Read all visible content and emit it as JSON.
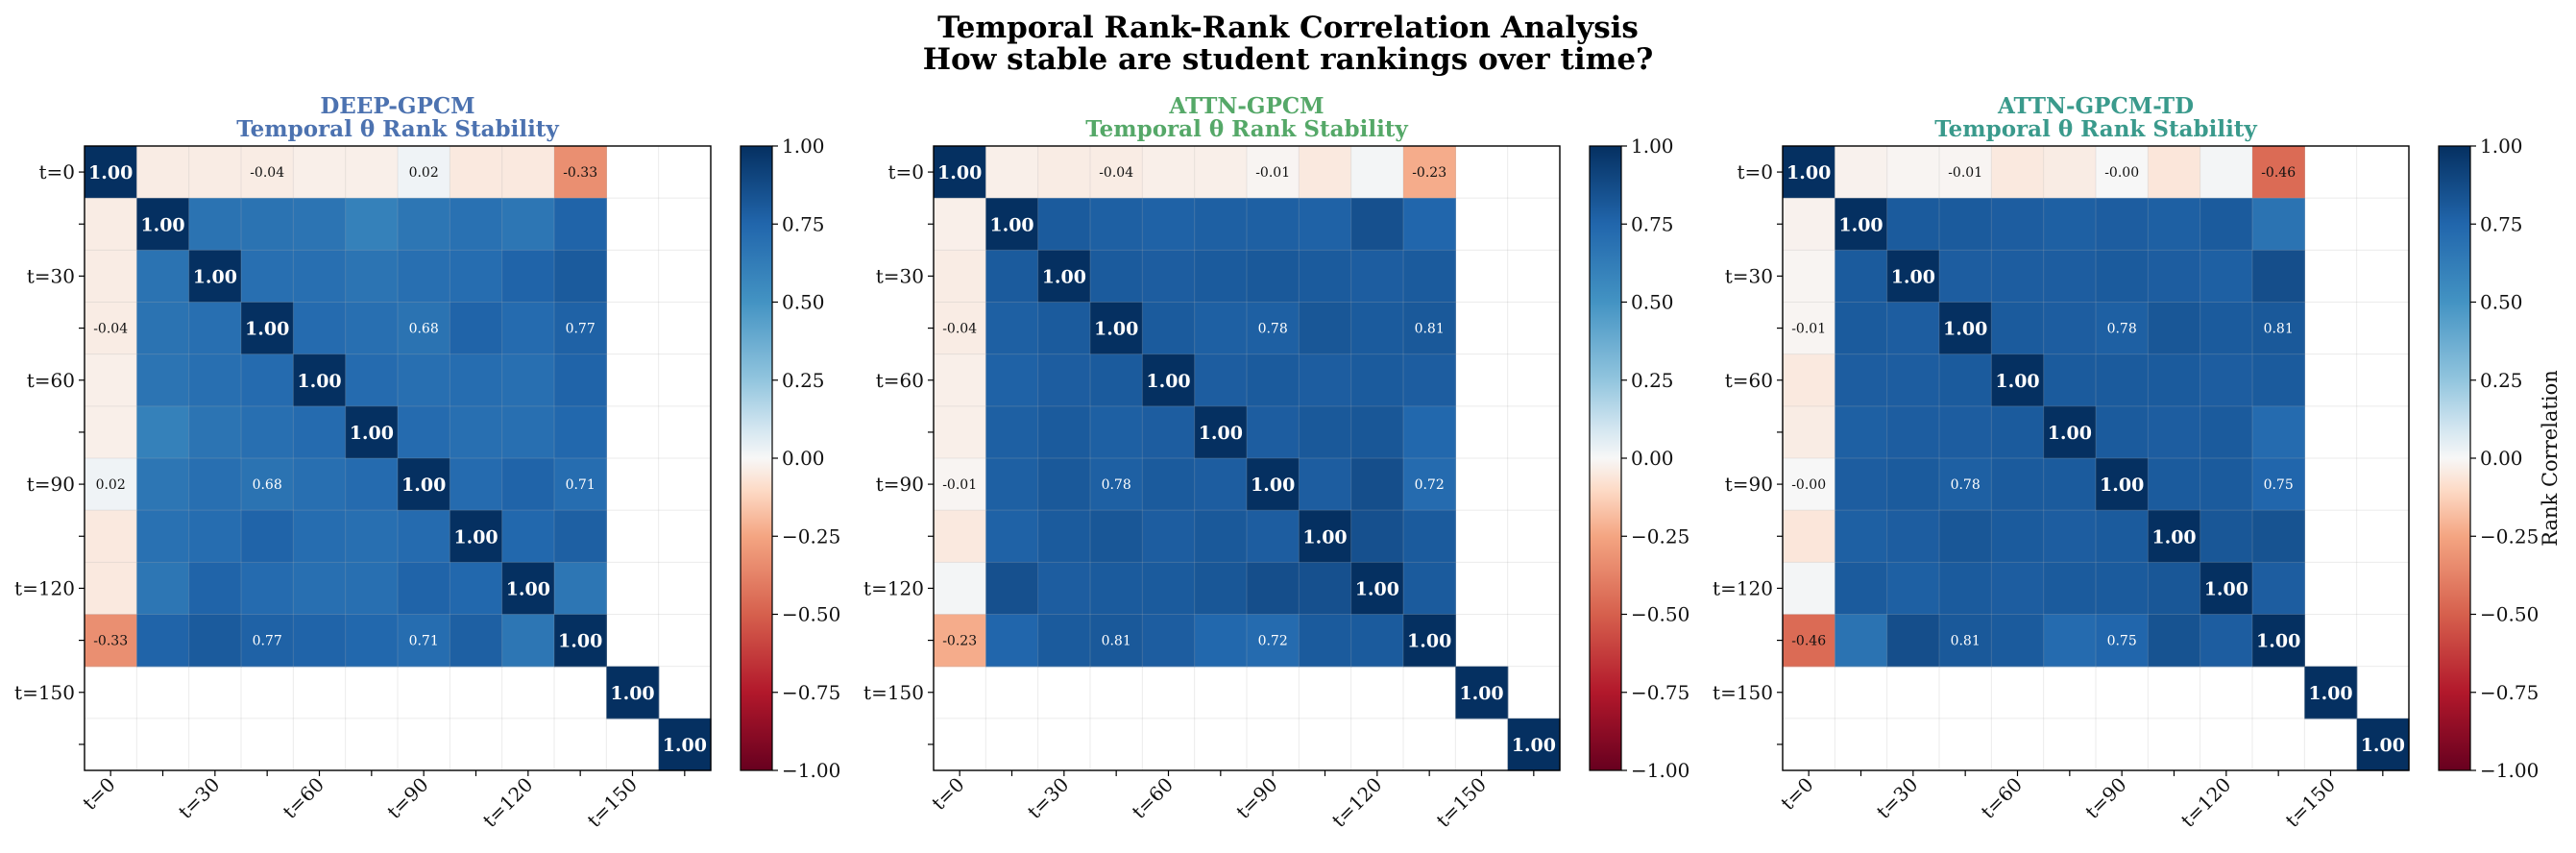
{
  "figure": {
    "title_line1": "Temporal Rank-Rank Correlation Analysis",
    "title_line2": "How stable are student rankings over time?"
  },
  "chart_data": [
    {
      "type": "heatmap",
      "title": "DEEP-GPCM",
      "subtitle": "Temporal θ Rank Stability",
      "title_color": "#4c72b0",
      "y_tick_labels": [
        "t=0",
        "t=30",
        "t=60",
        "t=90",
        "t=120",
        "t=150"
      ],
      "x_tick_labels": [
        "t=0",
        "t=30",
        "t=60",
        "t=90",
        "t=120",
        "t=150"
      ],
      "size": 12,
      "labeled_indices": [
        0,
        3,
        6,
        9
      ],
      "values": [
        [
          1.0,
          -0.04,
          -0.04,
          -0.04,
          -0.03,
          -0.03,
          0.02,
          -0.05,
          -0.05,
          -0.33,
          null,
          null
        ],
        [
          -0.04,
          1.0,
          0.68,
          0.68,
          0.67,
          0.6,
          0.66,
          0.69,
          0.66,
          0.76,
          null,
          null
        ],
        [
          -0.04,
          0.68,
          1.0,
          0.7,
          0.7,
          0.67,
          0.7,
          0.71,
          0.76,
          0.8,
          null,
          null
        ],
        [
          -0.04,
          0.68,
          0.7,
          1.0,
          0.72,
          0.7,
          0.68,
          0.76,
          0.72,
          0.77,
          null,
          null
        ],
        [
          -0.03,
          0.67,
          0.7,
          0.72,
          1.0,
          0.72,
          0.7,
          0.71,
          0.7,
          0.76,
          null,
          null
        ],
        [
          -0.03,
          0.6,
          0.67,
          0.7,
          0.72,
          1.0,
          0.72,
          0.7,
          0.7,
          0.74,
          null,
          null
        ],
        [
          0.02,
          0.66,
          0.7,
          0.68,
          0.7,
          0.72,
          1.0,
          0.72,
          0.76,
          0.71,
          null,
          null
        ],
        [
          -0.05,
          0.69,
          0.71,
          0.76,
          0.71,
          0.7,
          0.72,
          1.0,
          0.74,
          0.78,
          null,
          null
        ],
        [
          -0.05,
          0.66,
          0.76,
          0.72,
          0.7,
          0.7,
          0.76,
          0.74,
          1.0,
          0.66,
          null,
          null
        ],
        [
          -0.33,
          0.76,
          0.8,
          0.77,
          0.76,
          0.74,
          0.71,
          0.78,
          0.66,
          1.0,
          null,
          null
        ],
        [
          null,
          null,
          null,
          null,
          null,
          null,
          null,
          null,
          null,
          null,
          1.0,
          null
        ],
        [
          null,
          null,
          null,
          null,
          null,
          null,
          null,
          null,
          null,
          null,
          null,
          1.0
        ]
      ],
      "colorbar": {
        "min": -1.0,
        "max": 1.0,
        "ticks": [
          "1.00",
          "0.75",
          "0.50",
          "0.25",
          "0.00",
          "−0.25",
          "−0.50",
          "−0.75",
          "−1.00"
        ],
        "colormap": "RdBu"
      }
    },
    {
      "type": "heatmap",
      "title": "ATTN-GPCM",
      "subtitle": "Temporal θ Rank Stability",
      "title_color": "#55a868",
      "y_tick_labels": [
        "t=0",
        "t=30",
        "t=60",
        "t=90",
        "t=120",
        "t=150"
      ],
      "x_tick_labels": [
        "t=0",
        "t=30",
        "t=60",
        "t=90",
        "t=120",
        "t=150"
      ],
      "size": 12,
      "labeled_indices": [
        0,
        3,
        6,
        9
      ],
      "values": [
        [
          1.0,
          -0.03,
          -0.04,
          -0.04,
          -0.03,
          -0.03,
          -0.01,
          -0.05,
          0.01,
          -0.23,
          null,
          null
        ],
        [
          -0.03,
          1.0,
          0.8,
          0.78,
          0.77,
          0.78,
          0.78,
          0.77,
          0.85,
          0.75,
          null,
          null
        ],
        [
          -0.04,
          0.8,
          1.0,
          0.8,
          0.79,
          0.8,
          0.81,
          0.8,
          0.79,
          0.8,
          null,
          null
        ],
        [
          -0.04,
          0.78,
          0.8,
          1.0,
          0.8,
          0.78,
          0.78,
          0.82,
          0.8,
          0.81,
          null,
          null
        ],
        [
          -0.03,
          0.77,
          0.79,
          0.8,
          1.0,
          0.79,
          0.8,
          0.79,
          0.8,
          0.79,
          null,
          null
        ],
        [
          -0.03,
          0.78,
          0.8,
          0.78,
          0.79,
          1.0,
          0.79,
          0.81,
          0.82,
          0.74,
          null,
          null
        ],
        [
          -0.01,
          0.78,
          0.81,
          0.78,
          0.8,
          0.79,
          1.0,
          0.79,
          0.86,
          0.72,
          null,
          null
        ],
        [
          -0.05,
          0.77,
          0.8,
          0.82,
          0.79,
          0.81,
          0.79,
          1.0,
          0.85,
          0.8,
          null,
          null
        ],
        [
          0.01,
          0.85,
          0.79,
          0.8,
          0.8,
          0.82,
          0.86,
          0.85,
          1.0,
          0.8,
          null,
          null
        ],
        [
          -0.23,
          0.75,
          0.8,
          0.81,
          0.79,
          0.74,
          0.72,
          0.8,
          0.8,
          1.0,
          null,
          null
        ],
        [
          null,
          null,
          null,
          null,
          null,
          null,
          null,
          null,
          null,
          null,
          1.0,
          null
        ],
        [
          null,
          null,
          null,
          null,
          null,
          null,
          null,
          null,
          null,
          null,
          null,
          1.0
        ]
      ],
      "colorbar": {
        "min": -1.0,
        "max": 1.0,
        "ticks": [
          "1.00",
          "0.75",
          "0.50",
          "0.25",
          "0.00",
          "−0.25",
          "−0.50",
          "−0.75",
          "−1.00"
        ],
        "colormap": "RdBu"
      }
    },
    {
      "type": "heatmap",
      "title": "ATTN-GPCM-TD",
      "subtitle": "Temporal θ Rank Stability",
      "title_color": "#3a9a8c",
      "y_tick_labels": [
        "t=0",
        "t=30",
        "t=60",
        "t=90",
        "t=120",
        "t=150"
      ],
      "x_tick_labels": [
        "t=0",
        "t=30",
        "t=60",
        "t=90",
        "t=120",
        "t=150"
      ],
      "size": 12,
      "labeled_indices": [
        0,
        3,
        6,
        9
      ],
      "values": [
        [
          1.0,
          -0.02,
          -0.01,
          -0.01,
          -0.05,
          -0.04,
          -0.0,
          -0.06,
          0.01,
          -0.46,
          null,
          null
        ],
        [
          -0.02,
          1.0,
          0.8,
          0.8,
          0.79,
          0.78,
          0.79,
          0.78,
          0.8,
          0.68,
          null,
          null
        ],
        [
          -0.01,
          0.8,
          1.0,
          0.79,
          0.79,
          0.79,
          0.8,
          0.79,
          0.78,
          0.86,
          null,
          null
        ],
        [
          -0.01,
          0.8,
          0.79,
          1.0,
          0.8,
          0.79,
          0.78,
          0.82,
          0.8,
          0.81,
          null,
          null
        ],
        [
          -0.05,
          0.79,
          0.79,
          0.8,
          1.0,
          0.8,
          0.8,
          0.8,
          0.79,
          0.8,
          null,
          null
        ],
        [
          -0.04,
          0.78,
          0.79,
          0.79,
          0.8,
          1.0,
          0.8,
          0.79,
          0.8,
          0.72,
          null,
          null
        ],
        [
          -0.0,
          0.79,
          0.8,
          0.78,
          0.8,
          0.8,
          1.0,
          0.8,
          0.8,
          0.75,
          null,
          null
        ],
        [
          -0.06,
          0.78,
          0.79,
          0.82,
          0.8,
          0.79,
          0.8,
          1.0,
          0.82,
          0.84,
          null,
          null
        ],
        [
          0.01,
          0.8,
          0.78,
          0.8,
          0.79,
          0.8,
          0.8,
          0.82,
          1.0,
          0.79,
          null,
          null
        ],
        [
          -0.46,
          0.68,
          0.86,
          0.81,
          0.8,
          0.72,
          0.75,
          0.84,
          0.79,
          1.0,
          null,
          null
        ],
        [
          null,
          null,
          null,
          null,
          null,
          null,
          null,
          null,
          null,
          null,
          1.0,
          null
        ],
        [
          null,
          null,
          null,
          null,
          null,
          null,
          null,
          null,
          null,
          null,
          null,
          1.0
        ]
      ],
      "colorbar": {
        "min": -1.0,
        "max": 1.0,
        "ticks": [
          "1.00",
          "0.75",
          "0.50",
          "0.25",
          "0.00",
          "−0.25",
          "−0.50",
          "−0.75",
          "−1.00"
        ],
        "colormap": "RdBu"
      },
      "colorbar_label": "Rank Correlation"
    }
  ]
}
